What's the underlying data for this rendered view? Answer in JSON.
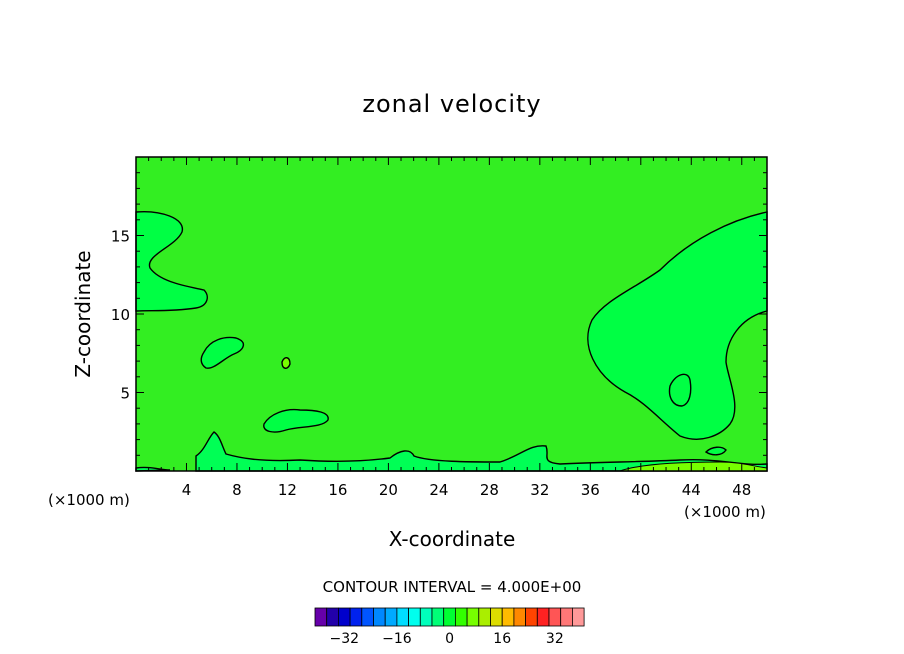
{
  "chart_data": {
    "type": "heatmap",
    "title": "zonal velocity",
    "xlabel": "X-coordinate",
    "ylabel": "Z-coordinate",
    "x_unit_left": "(×1000 m)",
    "x_unit_right": "(×1000 m)",
    "xlim": [
      0,
      50
    ],
    "ylim": [
      0,
      20
    ],
    "x_ticks": [
      4,
      8,
      12,
      16,
      20,
      24,
      28,
      32,
      36,
      40,
      44,
      48
    ],
    "x_tick_labels": [
      "4",
      "8",
      "12",
      "16",
      "20",
      "24",
      "28",
      "32",
      "36",
      "40",
      "44",
      "48"
    ],
    "y_ticks": [
      5,
      10,
      15
    ],
    "y_tick_labels": [
      "5",
      "10",
      "15"
    ],
    "contour_interval_label": "CONTOUR INTERVAL = 4.000E+00",
    "background_level_color": "#33ee22",
    "colorbar": {
      "colors": [
        "#6600aa",
        "#2200aa",
        "#0000cc",
        "#0022ee",
        "#0055ff",
        "#0088ff",
        "#00aaff",
        "#00ddff",
        "#00ffee",
        "#00ffbb",
        "#00ff77",
        "#00ff33",
        "#33ff00",
        "#77ff00",
        "#aaee00",
        "#dddd00",
        "#ffbb00",
        "#ff8800",
        "#ff4400",
        "#ff2222",
        "#ff5555",
        "#ff7777",
        "#ff9999"
      ],
      "tick_labels": [
        "−32",
        "−16",
        "0",
        "16",
        "32"
      ]
    }
  }
}
